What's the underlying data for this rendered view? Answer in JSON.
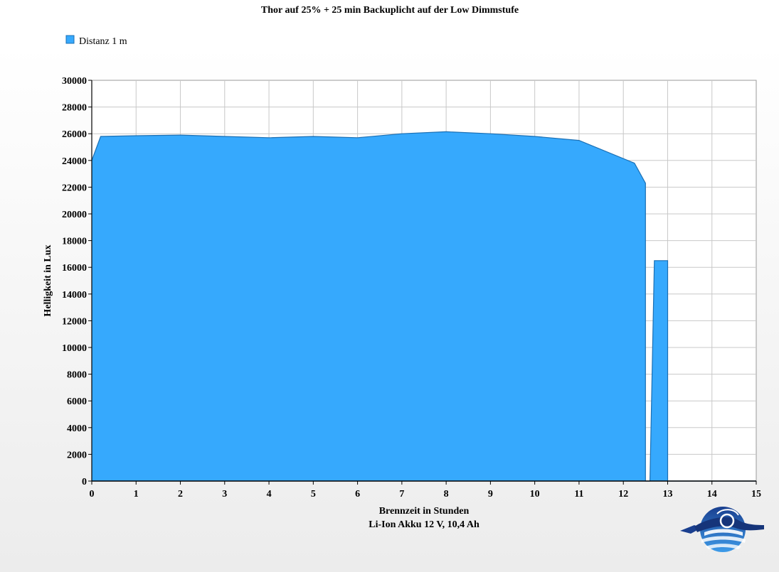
{
  "chart_data": {
    "type": "area",
    "title": "Thor auf 25% + 25 min Backuplicht auf der Low Dimmstufe",
    "xlabel": "Brennzeit in Stunden",
    "xlabel2": "Li-Ion Akku 12 V, 10,4 Ah",
    "ylabel": "Helligkeit in Lux",
    "xlim": [
      0,
      15
    ],
    "ylim": [
      0,
      30000
    ],
    "x_ticks": [
      0,
      1,
      2,
      3,
      4,
      5,
      6,
      7,
      8,
      9,
      10,
      11,
      12,
      13,
      14,
      15
    ],
    "y_ticks": [
      0,
      2000,
      4000,
      6000,
      8000,
      10000,
      12000,
      14000,
      16000,
      18000,
      20000,
      22000,
      24000,
      26000,
      28000,
      30000
    ],
    "grid": true,
    "legend_position": "top-left",
    "series": [
      {
        "name": "Distanz 1 m",
        "color": "#36a9fd",
        "line_color": "#1a6fb4",
        "points": [
          [
            0,
            24000
          ],
          [
            0.2,
            25800
          ],
          [
            1,
            25850
          ],
          [
            2,
            25900
          ],
          [
            3,
            25800
          ],
          [
            4,
            25700
          ],
          [
            5,
            25800
          ],
          [
            6,
            25700
          ],
          [
            7,
            26000
          ],
          [
            8,
            26150
          ],
          [
            9,
            26000
          ],
          [
            10,
            25800
          ],
          [
            11,
            25500
          ],
          [
            12.25,
            23800
          ],
          [
            12.5,
            22300
          ],
          [
            12.5,
            0
          ],
          [
            12.6,
            0
          ],
          [
            12.7,
            16500
          ],
          [
            13.0,
            16500
          ],
          [
            13.0,
            0
          ],
          [
            15,
            0
          ]
        ]
      }
    ]
  }
}
